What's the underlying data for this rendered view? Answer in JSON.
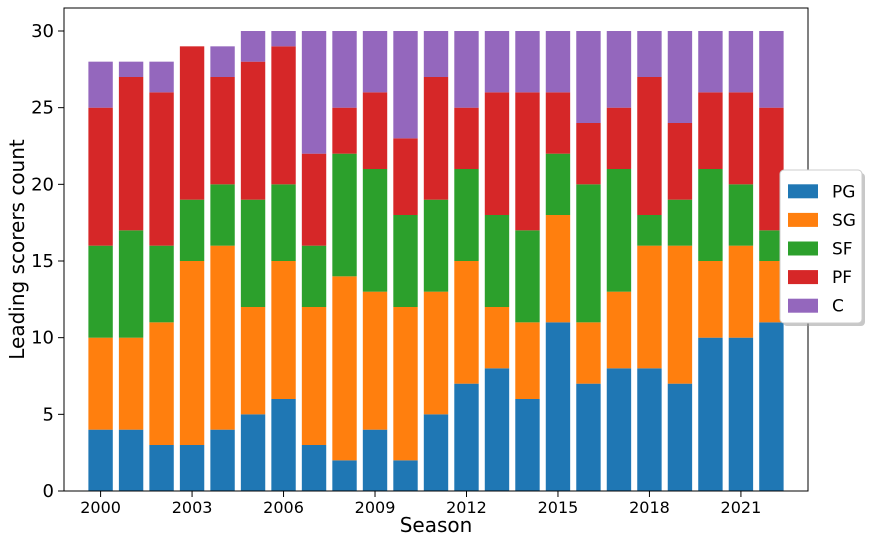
{
  "chart_data": {
    "type": "bar",
    "stacked": true,
    "xlabel": "Season",
    "ylabel": "Leading scorers count",
    "ylim": [
      0,
      31.5
    ],
    "yticks": [
      0,
      5,
      10,
      15,
      20,
      25,
      30
    ],
    "xticks": [
      2000,
      2003,
      2006,
      2009,
      2012,
      2015,
      2018,
      2021
    ],
    "grid": false,
    "legend_position": "center-right",
    "categories": [
      2000,
      2001,
      2002,
      2003,
      2004,
      2005,
      2006,
      2007,
      2008,
      2009,
      2010,
      2011,
      2012,
      2013,
      2014,
      2015,
      2016,
      2017,
      2018,
      2019,
      2020,
      2021,
      2022
    ],
    "series": [
      {
        "name": "PG",
        "color": "#1f77b4",
        "values": [
          4,
          4,
          3,
          3,
          4,
          5,
          6,
          3,
          2,
          4,
          2,
          5,
          7,
          8,
          6,
          11,
          7,
          8,
          8,
          7,
          10,
          10,
          11
        ]
      },
      {
        "name": "SG",
        "color": "#ff7f0e",
        "values": [
          6,
          6,
          8,
          12,
          12,
          7,
          9,
          9,
          12,
          9,
          10,
          8,
          8,
          4,
          5,
          7,
          4,
          5,
          8,
          9,
          5,
          6,
          4
        ]
      },
      {
        "name": "SF",
        "color": "#2ca02c",
        "values": [
          6,
          7,
          5,
          4,
          4,
          7,
          5,
          4,
          8,
          8,
          6,
          6,
          6,
          6,
          6,
          4,
          9,
          8,
          2,
          3,
          6,
          4,
          2
        ]
      },
      {
        "name": "PF",
        "color": "#d62728",
        "values": [
          9,
          10,
          10,
          10,
          7,
          9,
          9,
          6,
          3,
          5,
          5,
          8,
          4,
          8,
          9,
          4,
          4,
          4,
          9,
          5,
          5,
          6,
          8
        ]
      },
      {
        "name": "C",
        "color": "#9467bd",
        "values": [
          3,
          1,
          2,
          0,
          2,
          2,
          1,
          8,
          5,
          4,
          7,
          3,
          5,
          4,
          4,
          4,
          6,
          5,
          3,
          6,
          4,
          4,
          5
        ]
      }
    ]
  }
}
